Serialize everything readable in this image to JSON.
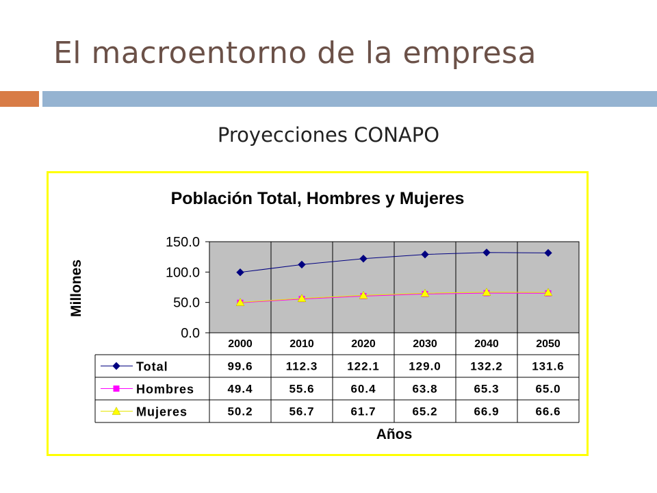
{
  "slide": {
    "title": "El macroentorno de la empresa",
    "subtitle": "Proyecciones CONAPO",
    "accent_color": "#d87c47",
    "bar_color": "#95b3d1",
    "frame_color": "#ffff00",
    "title_color": "#6b5148"
  },
  "chart_data": {
    "type": "line",
    "title": "Población Total, Hombres y Mujeres",
    "xlabel": "Años",
    "ylabel": "Millones",
    "categories": [
      "2000",
      "2010",
      "2020",
      "2030",
      "2040",
      "2050"
    ],
    "ylim": [
      0,
      150
    ],
    "yticks": [
      "0.0",
      "50.0",
      "100.0",
      "150.0"
    ],
    "ytick_values": [
      0,
      50,
      100,
      150
    ],
    "grid": "vertical",
    "plot_background": "#c0c0c0",
    "legend_placement": "data-table",
    "series": [
      {
        "name": "Total",
        "values": [
          99.6,
          112.3,
          122.1,
          129.0,
          132.2,
          131.6
        ],
        "labels": [
          "99.6",
          "112.3",
          "122.1",
          "129.0",
          "132.2",
          "131.6"
        ],
        "color": "#000080",
        "line_color": "#000080",
        "marker": "diamond"
      },
      {
        "name": "Hombres",
        "values": [
          49.4,
          55.6,
          60.4,
          63.8,
          65.3,
          65.0
        ],
        "labels": [
          "49.4",
          "55.6",
          "60.4",
          "63.8",
          "65.3",
          "65.0"
        ],
        "color": "#ff00ff",
        "line_color": "#ff00ff",
        "marker": "square"
      },
      {
        "name": "Mujeres",
        "values": [
          50.2,
          56.7,
          61.7,
          65.2,
          66.9,
          66.6
        ],
        "labels": [
          "50.2",
          "56.7",
          "61.7",
          "65.2",
          "66.9",
          "66.6"
        ],
        "color": "#ffff00",
        "line_color": "#e6e600",
        "marker": "triangle"
      }
    ]
  }
}
